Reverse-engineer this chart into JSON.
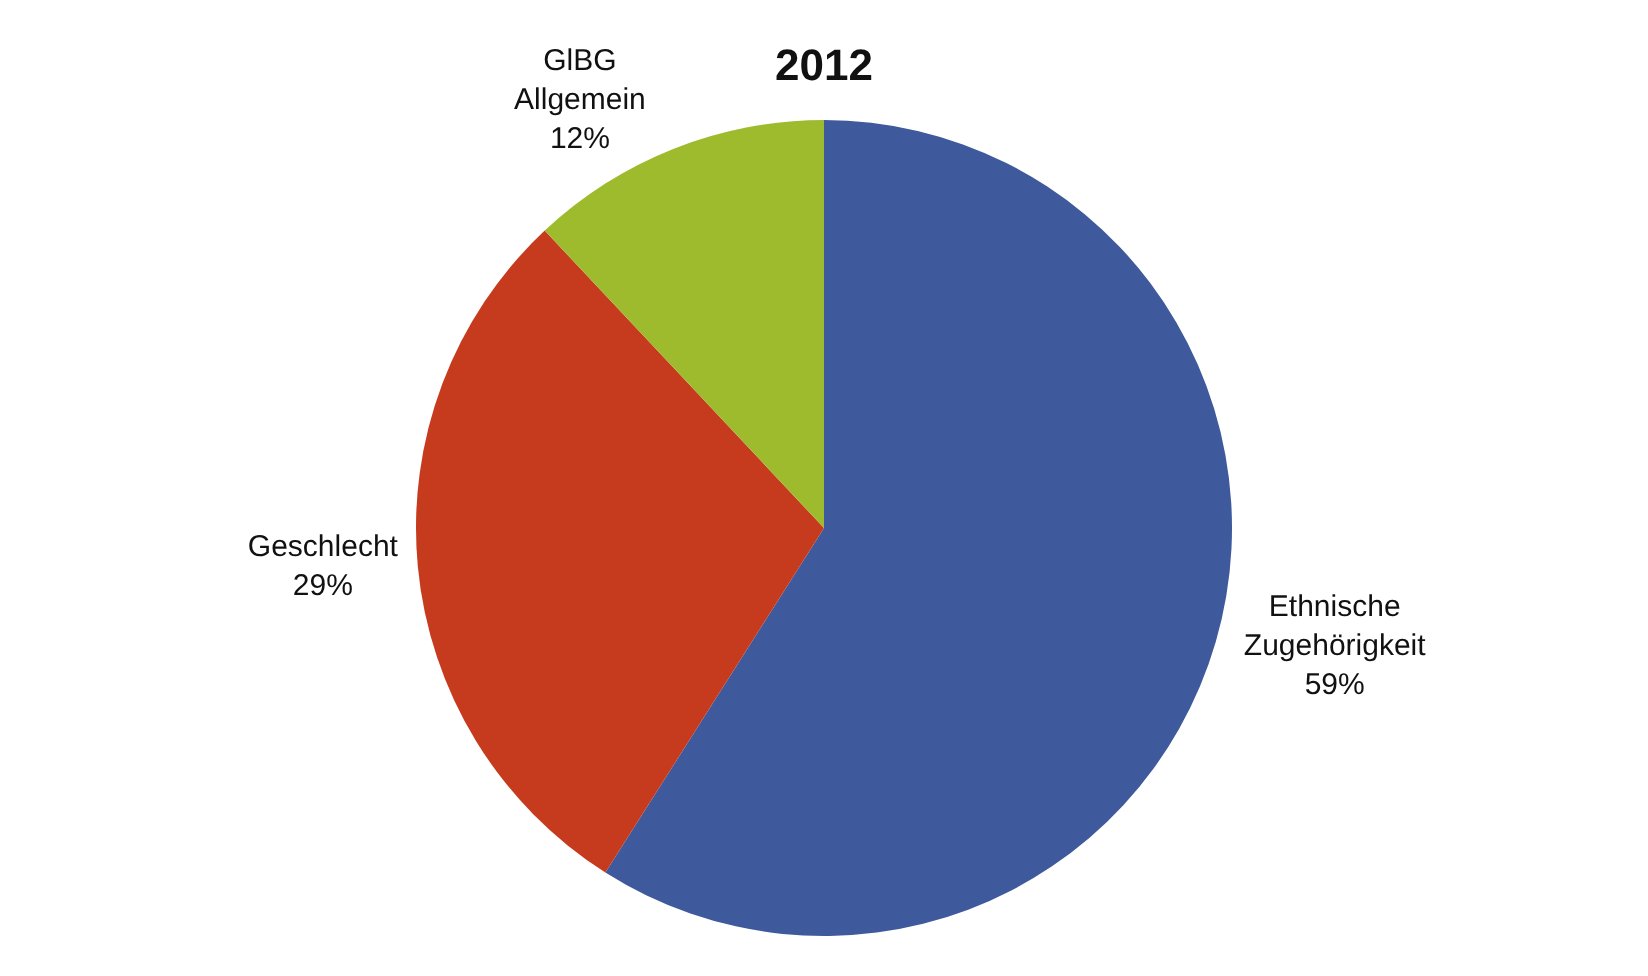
{
  "chart_data": {
    "type": "pie",
    "title": "2012",
    "categories": [
      "Ethnische Zugehörigkeit",
      "Geschlecht",
      "GlBG Allgemein"
    ],
    "values": [
      59,
      29,
      12
    ],
    "value_labels": [
      "59%",
      "29%",
      "12%"
    ],
    "colors": [
      "#3f5a9c",
      "#c63a1e",
      "#9dbb2c"
    ],
    "legend": false
  }
}
